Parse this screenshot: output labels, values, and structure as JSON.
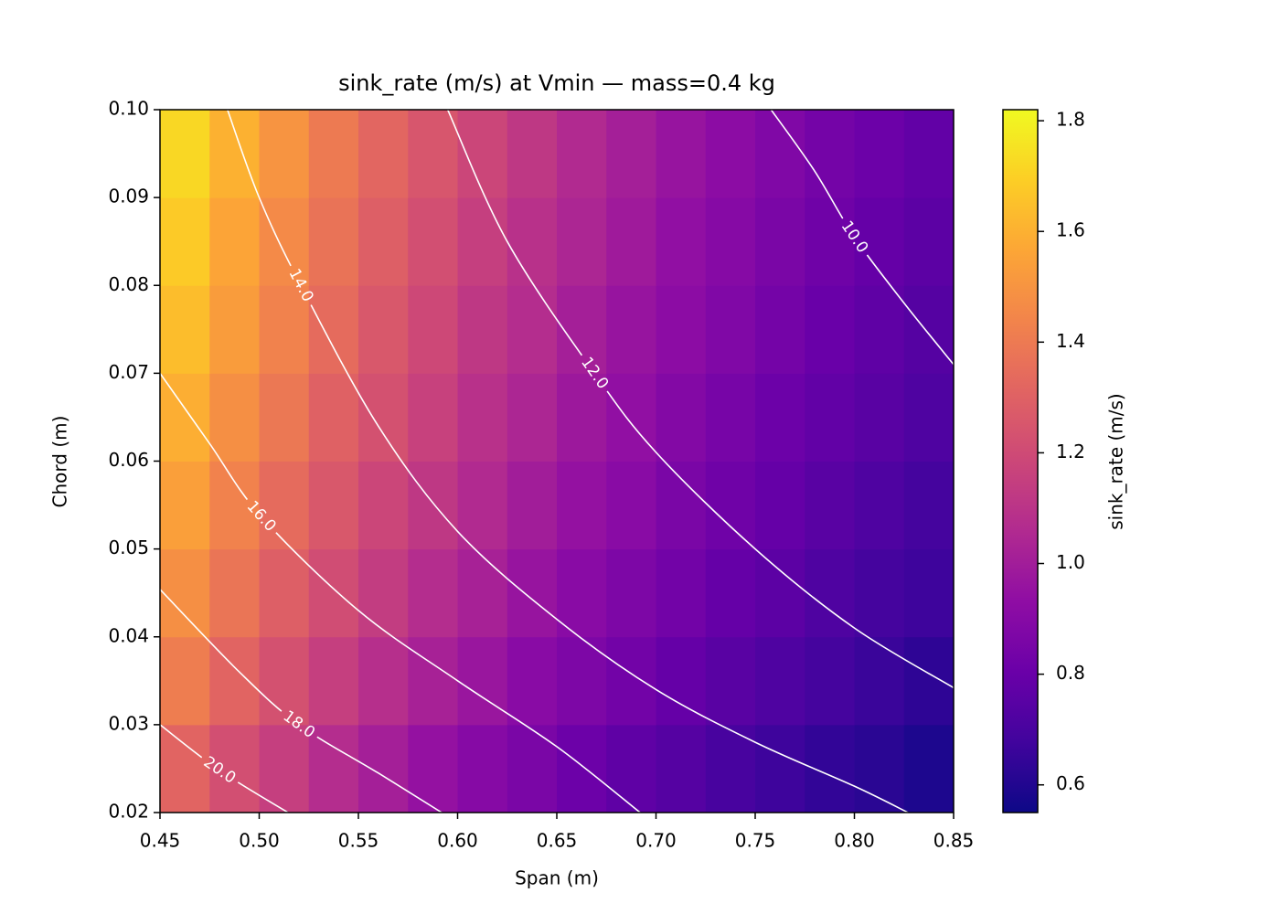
{
  "chart_data": {
    "type": "heatmap",
    "title": "sink_rate (m/s) at Vmin — mass=0.4 kg",
    "x_label": "Span (m)",
    "y_label": "Chord (m)",
    "colorbar_label": "sink_rate (m/s)",
    "colormap": "plasma",
    "x_edges": [
      0.45,
      0.475,
      0.5,
      0.525,
      0.55,
      0.575,
      0.6,
      0.625,
      0.65,
      0.675,
      0.7,
      0.725,
      0.75,
      0.775,
      0.8,
      0.825,
      0.85
    ],
    "y_edges": [
      0.02,
      0.03,
      0.04,
      0.05,
      0.06,
      0.07,
      0.08,
      0.09,
      0.1
    ],
    "values": [
      [
        1.31,
        1.22,
        1.15,
        1.07,
        1.01,
        0.95,
        0.9,
        0.86,
        0.81,
        0.77,
        0.74,
        0.7,
        0.67,
        0.64,
        0.62,
        0.59
      ],
      [
        1.41,
        1.31,
        1.23,
        1.15,
        1.08,
        1.02,
        0.97,
        0.91,
        0.87,
        0.83,
        0.79,
        0.75,
        0.72,
        0.69,
        0.66,
        0.63
      ],
      [
        1.48,
        1.38,
        1.29,
        1.21,
        1.14,
        1.07,
        1.02,
        0.96,
        0.91,
        0.87,
        0.83,
        0.79,
        0.76,
        0.72,
        0.69,
        0.67
      ],
      [
        1.54,
        1.43,
        1.34,
        1.26,
        1.18,
        1.12,
        1.06,
        1.0,
        0.95,
        0.91,
        0.86,
        0.82,
        0.79,
        0.75,
        0.72,
        0.69
      ],
      [
        1.59,
        1.48,
        1.39,
        1.3,
        1.23,
        1.16,
        1.09,
        1.04,
        0.98,
        0.94,
        0.89,
        0.85,
        0.81,
        0.78,
        0.75,
        0.72
      ],
      [
        1.64,
        1.53,
        1.43,
        1.34,
        1.26,
        1.19,
        1.12,
        1.07,
        1.01,
        0.96,
        0.92,
        0.88,
        0.84,
        0.8,
        0.77,
        0.74
      ],
      [
        1.68,
        1.56,
        1.46,
        1.37,
        1.29,
        1.22,
        1.15,
        1.09,
        1.04,
        0.99,
        0.94,
        0.9,
        0.86,
        0.82,
        0.79,
        0.76
      ],
      [
        1.72,
        1.6,
        1.5,
        1.4,
        1.32,
        1.25,
        1.18,
        1.12,
        1.06,
        1.01,
        0.96,
        0.92,
        0.88,
        0.84,
        0.81,
        0.78
      ]
    ],
    "clim": [
      0.55,
      1.82
    ],
    "xlim": [
      0.45,
      0.85
    ],
    "ylim": [
      0.02,
      0.1
    ],
    "xticks": [
      {
        "value": 0.45,
        "label": "0.45"
      },
      {
        "value": 0.5,
        "label": "0.50"
      },
      {
        "value": 0.55,
        "label": "0.55"
      },
      {
        "value": 0.6,
        "label": "0.60"
      },
      {
        "value": 0.65,
        "label": "0.65"
      },
      {
        "value": 0.7,
        "label": "0.70"
      },
      {
        "value": 0.75,
        "label": "0.75"
      },
      {
        "value": 0.8,
        "label": "0.80"
      },
      {
        "value": 0.85,
        "label": "0.85"
      }
    ],
    "yticks": [
      {
        "value": 0.02,
        "label": "0.02"
      },
      {
        "value": 0.03,
        "label": "0.03"
      },
      {
        "value": 0.04,
        "label": "0.04"
      },
      {
        "value": 0.05,
        "label": "0.05"
      },
      {
        "value": 0.06,
        "label": "0.06"
      },
      {
        "value": 0.07,
        "label": "0.07"
      },
      {
        "value": 0.08,
        "label": "0.08"
      },
      {
        "value": 0.09,
        "label": "0.09"
      },
      {
        "value": 0.1,
        "label": "0.10"
      }
    ],
    "cticks": [
      {
        "value": 0.6,
        "label": "0.6"
      },
      {
        "value": 0.8,
        "label": "0.8"
      },
      {
        "value": 1.0,
        "label": "1.0"
      },
      {
        "value": 1.2,
        "label": "1.2"
      },
      {
        "value": 1.4,
        "label": "1.4"
      },
      {
        "value": 1.6,
        "label": "1.6"
      },
      {
        "value": 1.8,
        "label": "1.8"
      }
    ],
    "contour_color": "#ffffff",
    "contours": [
      {
        "level": 10,
        "label": "10.0",
        "x": [
          0.758,
          0.78,
          0.8,
          0.825,
          0.85
        ],
        "y": [
          0.1,
          0.093,
          0.0855,
          0.078,
          0.071
        ]
      },
      {
        "level": 12,
        "label": "12.0",
        "x": [
          0.595,
          0.625,
          0.669,
          0.7,
          0.75,
          0.8,
          0.85
        ],
        "y": [
          0.1,
          0.085,
          0.07,
          0.061,
          0.05,
          0.041,
          0.0342
        ]
      },
      {
        "level": 14,
        "label": "14.0",
        "x": [
          0.484,
          0.5,
          0.521,
          0.56,
          0.6,
          0.65,
          0.7,
          0.75,
          0.8,
          0.827
        ],
        "y": [
          0.1,
          0.09,
          0.08,
          0.064,
          0.052,
          0.042,
          0.034,
          0.028,
          0.023,
          0.02
        ]
      },
      {
        "level": 16,
        "label": "16.0",
        "x": [
          0.45,
          0.475,
          0.501,
          0.55,
          0.6,
          0.65,
          0.692
        ],
        "y": [
          0.07,
          0.062,
          0.0537,
          0.043,
          0.035,
          0.0275,
          0.02
        ]
      },
      {
        "level": 18,
        "label": "18.0",
        "x": [
          0.45,
          0.49,
          0.52,
          0.56,
          0.592
        ],
        "y": [
          0.0454,
          0.036,
          0.03,
          0.0245,
          0.02
        ]
      },
      {
        "level": 20,
        "label": "20.0",
        "x": [
          0.45,
          0.48,
          0.5145
        ],
        "y": [
          0.03,
          0.0248,
          0.02
        ]
      }
    ]
  }
}
